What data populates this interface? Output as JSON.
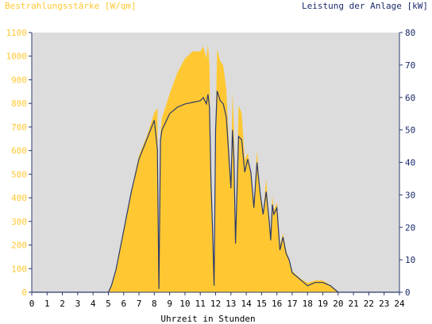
{
  "colors": {
    "plot_bg": "#dcdcdc",
    "irradiance_fill": "#ffc832",
    "power_line": "#2b3a6b",
    "left_axis_text": "#ffc832",
    "right_axis_text": "#1a2a6b"
  },
  "chart_data": {
    "type": "area",
    "title_left": "Bestrahlungsstärke [W/qm]",
    "title_right": "Leistung der Anlage [kW]",
    "xlabel": "Uhrzeit in Stunden",
    "xlim": [
      0,
      24
    ],
    "ylim_left": [
      0,
      1100
    ],
    "ylim_right": [
      0,
      80
    ],
    "grid": false,
    "x_ticks": [
      "0",
      "1",
      "2",
      "3",
      "4",
      "5",
      "6",
      "7",
      "8",
      "9",
      "10",
      "11",
      "12",
      "13",
      "14",
      "15",
      "16",
      "17",
      "18",
      "19",
      "20",
      "21",
      "22",
      "23",
      "24"
    ],
    "y_left_ticks": [
      "0",
      "100",
      "200",
      "300",
      "400",
      "500",
      "600",
      "700",
      "800",
      "900",
      "1000",
      "1100"
    ],
    "y_right_ticks": [
      "0",
      "10",
      "20",
      "30",
      "40",
      "50",
      "60",
      "70",
      "80"
    ],
    "series": [
      {
        "name": "Bestrahlungsstärke [W/qm]",
        "axis": "left",
        "style": "area",
        "x": [
          0,
          5,
          5.2,
          5.5,
          6,
          6.5,
          7,
          7.5,
          8,
          8.2,
          8.3,
          8.4,
          8.5,
          9,
          9.5,
          10,
          10.5,
          11,
          11.2,
          11.4,
          11.5,
          11.6,
          11.7,
          11.8,
          11.9,
          12,
          12.1,
          12.3,
          12.5,
          12.7,
          13,
          13.1,
          13.2,
          13.3,
          13.5,
          13.7,
          13.9,
          14.1,
          14.3,
          14.5,
          14.7,
          14.9,
          15.1,
          15.3,
          15.5,
          15.6,
          15.7,
          15.8,
          16,
          16.2,
          16.4,
          16.6,
          16.8,
          17,
          17.5,
          18,
          18.5,
          19,
          19.5,
          20,
          24
        ],
        "y": [
          0,
          0,
          30,
          100,
          260,
          430,
          580,
          660,
          760,
          780,
          15,
          680,
          740,
          840,
          930,
          990,
          1020,
          1020,
          1040,
          990,
          1050,
          960,
          450,
          300,
          5,
          700,
          1030,
          980,
          960,
          860,
          450,
          850,
          700,
          220,
          790,
          760,
          560,
          590,
          510,
          380,
          600,
          430,
          330,
          480,
          300,
          250,
          410,
          350,
          380,
          200,
          250,
          180,
          140,
          90,
          60,
          40,
          50,
          50,
          30,
          0,
          0
        ]
      },
      {
        "name": "Leistung der Anlage [kW]",
        "axis": "right",
        "style": "line",
        "x": [
          0,
          5,
          5.2,
          5.5,
          6,
          6.5,
          7,
          7.5,
          8,
          8.2,
          8.3,
          8.4,
          8.5,
          9,
          9.5,
          10,
          10.5,
          11,
          11.2,
          11.4,
          11.5,
          11.6,
          11.7,
          11.8,
          11.9,
          12,
          12.1,
          12.3,
          12.5,
          12.7,
          13,
          13.1,
          13.2,
          13.3,
          13.5,
          13.7,
          13.9,
          14.1,
          14.3,
          14.5,
          14.7,
          14.9,
          15.1,
          15.3,
          15.5,
          15.6,
          15.7,
          15.8,
          16,
          16.2,
          16.4,
          16.6,
          16.8,
          17,
          17.5,
          18,
          18.5,
          19,
          19.5,
          20,
          24
        ],
        "y": [
          0,
          0,
          2,
          7,
          19,
          31,
          41,
          47,
          53,
          44,
          1,
          47,
          50,
          55,
          57,
          58,
          58.5,
          59,
          60,
          58,
          61,
          57,
          34,
          20,
          2,
          50,
          62,
          59,
          58,
          54,
          32,
          50,
          41,
          15,
          48,
          47,
          37,
          41,
          37,
          26,
          40,
          31,
          24,
          31,
          22,
          16,
          27,
          24,
          26,
          13,
          17,
          12,
          10,
          6,
          4,
          2,
          3,
          3,
          2,
          0,
          0
        ]
      }
    ]
  }
}
